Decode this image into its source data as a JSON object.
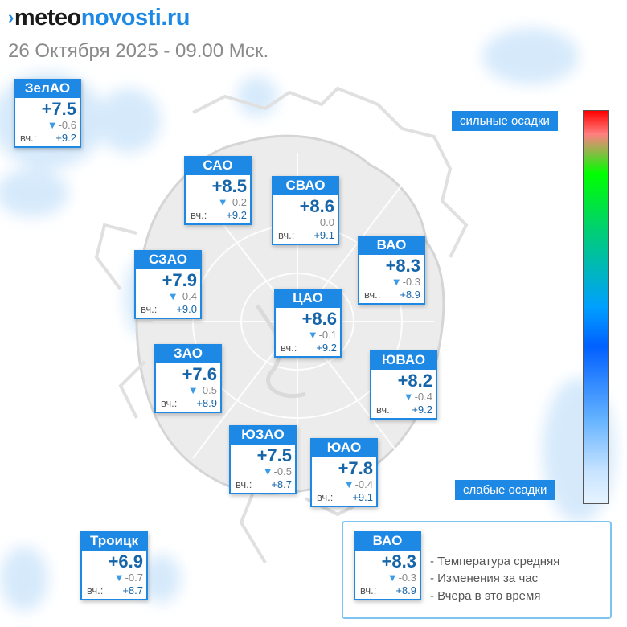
{
  "logo": {
    "chevron": "›",
    "part1": "meteo",
    "part2": "novosti.ru"
  },
  "datetime": "26 Октября 2025 - 09.00 Мск.",
  "districts": [
    {
      "id": "zelao",
      "name": "ЗелАО",
      "temp": "+7.5",
      "delta": "-0.6",
      "delta_dir": "down",
      "yest_label": "вч.:",
      "yest": "+9.2"
    },
    {
      "id": "sao",
      "name": "САО",
      "temp": "+8.5",
      "delta": "-0.2",
      "delta_dir": "down",
      "yest_label": "вч.:",
      "yest": "+9.2"
    },
    {
      "id": "svao",
      "name": "СВАО",
      "temp": "+8.6",
      "delta": "0.0",
      "delta_dir": "none",
      "yest_label": "вч.:",
      "yest": "+9.1"
    },
    {
      "id": "vao",
      "name": "ВАО",
      "temp": "+8.3",
      "delta": "-0.3",
      "delta_dir": "down",
      "yest_label": "вч.:",
      "yest": "+8.9"
    },
    {
      "id": "szao",
      "name": "СЗАО",
      "temp": "+7.9",
      "delta": "-0.4",
      "delta_dir": "down",
      "yest_label": "вч.:",
      "yest": "+9.0"
    },
    {
      "id": "cao",
      "name": "ЦАО",
      "temp": "+8.6",
      "delta": "-0.1",
      "delta_dir": "down",
      "yest_label": "вч.:",
      "yest": "+9.2"
    },
    {
      "id": "zao",
      "name": "ЗАО",
      "temp": "+7.6",
      "delta": "-0.5",
      "delta_dir": "down",
      "yest_label": "вч.:",
      "yest": "+8.9"
    },
    {
      "id": "yuvao",
      "name": "ЮВАО",
      "temp": "+8.2",
      "delta": "-0.4",
      "delta_dir": "down",
      "yest_label": "вч.:",
      "yest": "+9.2"
    },
    {
      "id": "yuzao",
      "name": "ЮЗАО",
      "temp": "+7.5",
      "delta": "-0.5",
      "delta_dir": "down",
      "yest_label": "вч.:",
      "yest": "+8.7"
    },
    {
      "id": "yuao",
      "name": "ЮАО",
      "temp": "+7.8",
      "delta": "-0.4",
      "delta_dir": "down",
      "yest_label": "вч.:",
      "yest": "+9.1"
    },
    {
      "id": "troitsk",
      "name": "Троицк",
      "temp": "+6.9",
      "delta": "-0.7",
      "delta_dir": "down",
      "yest_label": "вч.:",
      "yest": "+8.7"
    }
  ],
  "scale": {
    "top_label": "сильные осадки",
    "bottom_label": "слабые осадки",
    "colors": [
      "#ff0000",
      "#00ff00",
      "#00a0ff",
      "#e6f3ff"
    ]
  },
  "legend": {
    "sample": {
      "name": "ВАО",
      "temp": "+8.3",
      "delta": "-0.3",
      "delta_dir": "down",
      "yest_label": "вч.:",
      "yest": "+8.9"
    },
    "lines": [
      "- Температура средняя",
      "- Изменения за час",
      "- Вчера в это время"
    ]
  },
  "colors": {
    "accent": "#1e88e5",
    "temp_text": "#1565a8",
    "precip_light": "#cfe6fb"
  }
}
